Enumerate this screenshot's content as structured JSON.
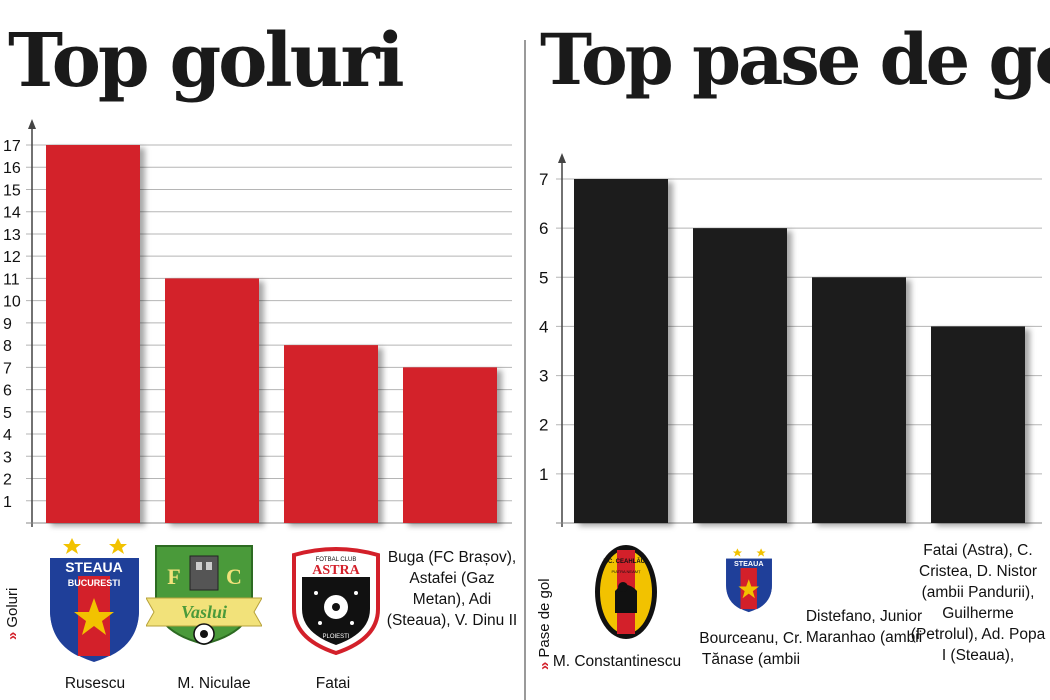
{
  "chart_data": [
    {
      "type": "bar",
      "title": "Top goluri",
      "ylabel": "Goluri",
      "ylim": [
        0,
        17
      ],
      "yticks": [
        1,
        2,
        3,
        4,
        5,
        6,
        7,
        8,
        9,
        10,
        11,
        12,
        13,
        14,
        15,
        16,
        17
      ],
      "categories": [
        "Rusescu",
        "M. Niculae",
        "Fatai",
        "Buga (FC Brașov), Astafei (Gaz Metan), Adi (Steaua), V. Dinu II"
      ],
      "values": [
        17,
        11,
        8,
        7
      ],
      "bar_color": "#d3202a"
    },
    {
      "type": "bar",
      "title": "Top pase de gol",
      "ylabel": "Pase de gol",
      "ylim": [
        0,
        7
      ],
      "yticks": [
        1,
        2,
        3,
        4,
        5,
        6,
        7
      ],
      "categories": [
        "M. Constantinescu",
        "Bourceanu, Cr. Tănase (ambii",
        "Distefano, Junior Maranhao (ambii",
        "Fatai (Astra), C. Cristea, D. Nistor (ambii Pandurii), Guilherme (Petrolul), Ad. Popa I (Steaua),"
      ],
      "values": [
        7,
        6,
        5,
        4
      ],
      "bar_color": "#1c1c1c"
    }
  ],
  "logos": {
    "steaua_text": "STEAUA",
    "bucuresti_text": "BUCURESTI",
    "fcv_f": "F",
    "fcv_c": "C",
    "vaslui_text": "Vaslui",
    "astra_text": "ASTRA",
    "astra_top": "FOTBAL CLUB",
    "astra_bottom": "PLOIESTI",
    "ceahlaul_text": "F.C. CEAHLĂUL",
    "ceahlaul_bottom": "PIATRA NEAMȚ"
  },
  "colors": {
    "accent_red": "#d3202a",
    "steaua_blue": "#1f3f99",
    "vaslui_green": "#4a9a3a",
    "ceahlaul_yellow": "#f2c200"
  }
}
